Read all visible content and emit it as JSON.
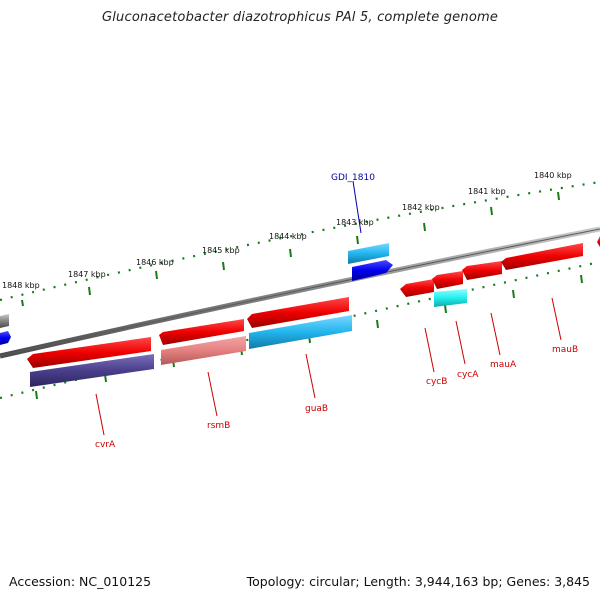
{
  "title": "Gluconacetobacter diazotrophicus PAl 5, complete genome",
  "footer": {
    "accession": "Accession: NC_010125",
    "summary": "Topology: circular; Length: 3,944,163 bp; Genes: 3,845"
  },
  "kbp_labels": [
    "1848 kbp",
    "1847 kbp",
    "1846 kbp",
    "1845 kbp",
    "1844 kbp",
    "1843 kbp",
    "1842 kbp",
    "1841 kbp",
    "1840 kbp"
  ],
  "gene_labels": [
    "GDI_1810",
    "cvrA",
    "rsmB",
    "guaB",
    "cycB",
    "cycA",
    "mauA",
    "mauB"
  ],
  "colors": {
    "backbone": "#808080",
    "ticks": "#1a7a1a",
    "gene_red": "#ee0000",
    "gene_light_red": "#ee7d7d",
    "gene_cyan": "#22bbee",
    "gene_bright_cyan": "#22eeee",
    "gene_blue": "#0000ee",
    "gene_navy": "#4a3f8a",
    "label_red": "#cc0000",
    "label_blue": "#0000aa"
  }
}
